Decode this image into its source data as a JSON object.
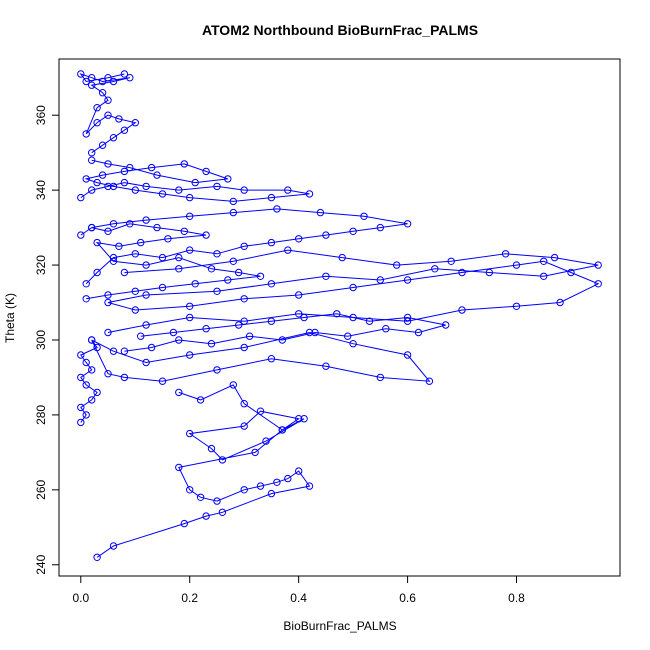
{
  "chart_data": {
    "type": "scatter",
    "title": "ATOM2 Northbound BioBurnFrac_PALMS",
    "xlabel": "BioBurnFrac_PALMS",
    "ylabel": "Theta (K)",
    "xlim": [
      -0.04,
      0.99
    ],
    "ylim": [
      237,
      375
    ],
    "x_ticks": [
      0.0,
      0.2,
      0.4,
      0.6,
      0.8
    ],
    "x_tick_labels": [
      "0.0",
      "0.2",
      "0.4",
      "0.6",
      "0.8"
    ],
    "y_ticks": [
      240,
      260,
      280,
      300,
      320,
      340,
      360
    ],
    "y_tick_labels": [
      "240",
      "260",
      "280",
      "300",
      "320",
      "340",
      "360"
    ],
    "grid": false,
    "legend": "none",
    "marker": "open-circle",
    "connect_points": true,
    "color": "#0000ff",
    "series": [
      {
        "x": [
          0.03,
          0.06,
          0.19,
          0.23,
          0.26,
          0.35,
          0.42,
          0.4,
          0.38,
          0.36,
          0.33,
          0.3,
          0.25,
          0.22,
          0.2,
          0.18,
          0.32,
          0.37,
          0.41,
          0.34,
          0.26,
          0.24,
          0.2,
          0.3,
          0.33,
          0.4,
          0.37,
          0.3,
          0.28,
          0.22,
          0.18
        ],
        "y": [
          242,
          245,
          251,
          253,
          254,
          259,
          261,
          265,
          263,
          262,
          261,
          260,
          257,
          258,
          260,
          266,
          270,
          276,
          279,
          273,
          268,
          271,
          275,
          277,
          281,
          279,
          276,
          283,
          288,
          284,
          286
        ]
      },
      {
        "x": [
          0.0,
          0.01,
          0.0,
          0.02,
          0.03,
          0.01,
          0.0,
          0.02,
          0.01,
          0.0,
          0.03,
          0.02,
          0.05,
          0.08,
          0.15,
          0.25,
          0.35,
          0.45,
          0.55,
          0.64,
          0.6,
          0.5,
          0.42,
          0.3,
          0.2,
          0.12,
          0.06,
          0.02
        ],
        "y": [
          278,
          280,
          282,
          284,
          286,
          288,
          290,
          292,
          294,
          296,
          298,
          300,
          291,
          290,
          289,
          292,
          295,
          293,
          290,
          289,
          296,
          299,
          302,
          298,
          296,
          294,
          297,
          300
        ]
      },
      {
        "x": [
          0.05,
          0.12,
          0.2,
          0.3,
          0.4,
          0.5,
          0.6,
          0.7,
          0.8,
          0.88,
          0.95,
          0.9,
          0.85,
          0.8,
          0.7,
          0.6,
          0.5,
          0.4,
          0.3,
          0.2,
          0.1,
          0.05,
          0.12,
          0.25,
          0.35,
          0.45,
          0.55,
          0.65,
          0.75,
          0.85,
          0.95,
          0.87,
          0.78,
          0.68,
          0.58,
          0.48,
          0.38,
          0.28,
          0.18,
          0.08
        ],
        "y": [
          302,
          304,
          306,
          305,
          307,
          306,
          305,
          308,
          309,
          310,
          315,
          318,
          321,
          320,
          318,
          316,
          314,
          312,
          311,
          309,
          308,
          310,
          312,
          313,
          315,
          317,
          316,
          319,
          318,
          317,
          320,
          322,
          323,
          321,
          320,
          322,
          324,
          321,
          319,
          318
        ]
      },
      {
        "x": [
          0.01,
          0.03,
          0.06,
          0.1,
          0.15,
          0.2,
          0.25,
          0.3,
          0.35,
          0.4,
          0.45,
          0.5,
          0.55,
          0.6,
          0.52,
          0.44,
          0.36,
          0.28,
          0.2,
          0.12,
          0.06,
          0.02
        ],
        "y": [
          315,
          318,
          322,
          323,
          322,
          324,
          323,
          325,
          326,
          327,
          328,
          329,
          330,
          331,
          333,
          334,
          335,
          334,
          333,
          332,
          331,
          330
        ]
      },
      {
        "x": [
          0.0,
          0.02,
          0.05,
          0.08,
          0.12,
          0.18,
          0.25,
          0.3,
          0.38,
          0.42,
          0.35,
          0.28,
          0.2,
          0.15,
          0.1,
          0.06,
          0.03,
          0.01,
          0.04,
          0.08,
          0.13,
          0.19,
          0.23,
          0.27,
          0.21,
          0.14,
          0.09,
          0.05,
          0.02
        ],
        "y": [
          338,
          340,
          341,
          342,
          341,
          340,
          341,
          340,
          340,
          339,
          338,
          337,
          338,
          339,
          340,
          341,
          342,
          343,
          344,
          345,
          346,
          347,
          345,
          343,
          342,
          344,
          346,
          347,
          348
        ]
      },
      {
        "x": [
          0.02,
          0.04,
          0.06,
          0.08,
          0.1,
          0.07,
          0.05,
          0.03,
          0.01,
          0.03,
          0.05,
          0.04,
          0.02,
          0.06,
          0.09,
          0.04,
          0.02,
          0.0,
          0.01,
          0.05,
          0.08
        ],
        "y": [
          350,
          352,
          354,
          356,
          358,
          359,
          360,
          358,
          355,
          362,
          364,
          366,
          368,
          369,
          370,
          369,
          370,
          371,
          369,
          370,
          371
        ]
      },
      {
        "x": [
          0.0,
          0.02,
          0.05,
          0.09,
          0.14,
          0.19,
          0.23,
          0.16,
          0.11,
          0.07,
          0.03,
          0.06,
          0.12,
          0.18,
          0.24,
          0.29,
          0.33,
          0.27,
          0.21,
          0.15,
          0.1,
          0.05,
          0.01
        ],
        "y": [
          328,
          330,
          329,
          331,
          330,
          329,
          328,
          327,
          326,
          325,
          326,
          321,
          320,
          322,
          319,
          318,
          317,
          316,
          315,
          314,
          313,
          312,
          311
        ]
      },
      {
        "x": [
          0.08,
          0.13,
          0.18,
          0.24,
          0.31,
          0.37,
          0.43,
          0.49,
          0.56,
          0.62,
          0.67,
          0.6,
          0.53,
          0.47,
          0.41,
          0.35,
          0.29,
          0.23,
          0.17,
          0.11
        ],
        "y": [
          297,
          298,
          300,
          299,
          301,
          300,
          302,
          301,
          303,
          302,
          304,
          306,
          305,
          307,
          306,
          305,
          304,
          303,
          302,
          301
        ]
      }
    ]
  }
}
